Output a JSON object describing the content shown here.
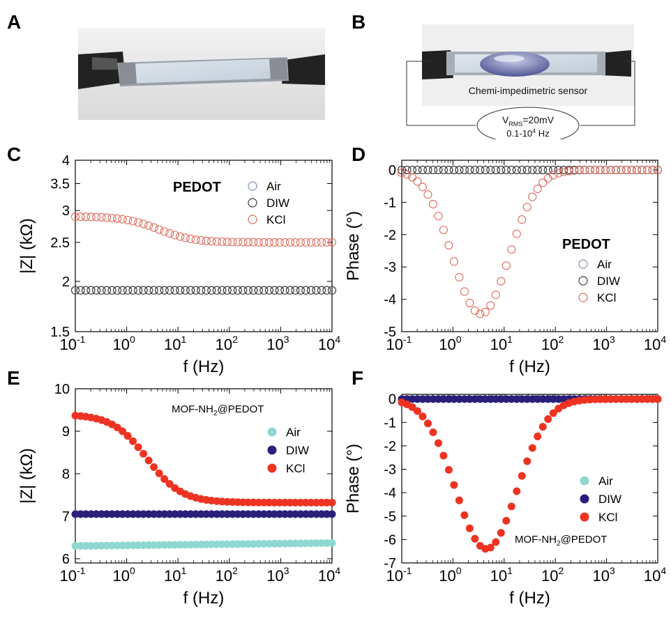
{
  "panels": {
    "A": "A",
    "B": "B",
    "C": "C",
    "D": "D",
    "E": "E",
    "F": "F"
  },
  "photo_b": {
    "sensor_label": "Chemi-impedimetric sensor",
    "vrms_main": "V",
    "vrms_sub": "RMS",
    "vrms_value": "=20mV",
    "freq_main": "0.1-10",
    "freq_sup": "4",
    "freq_unit": " Hz"
  },
  "colors": {
    "air_open": "#7f8fae",
    "diw_open": "#3a3a3a",
    "kcl_open": "#e06a5c",
    "air_fill": "#8fd8cf",
    "diw_fill": "#2a1f7a",
    "kcl_fill": "#ee3322"
  },
  "chart_data": [
    {
      "id": "C",
      "type": "scatter",
      "xscale": "log",
      "yscale": "log",
      "xlabel": "f (Hz)",
      "ylabel": "|Z| (kΩ)",
      "xlim": [
        0.1,
        10000
      ],
      "ylim": [
        1.5,
        4
      ],
      "yticks": [
        "1.5",
        "2",
        "2.5",
        "3",
        "3.5",
        "4"
      ],
      "ytick_values": [
        1.5,
        2,
        2.5,
        3,
        3.5,
        4
      ],
      "xticks_base": "10",
      "xticks_exp": [
        "-1",
        "0",
        "1",
        "2",
        "3",
        "4"
      ],
      "legend_title": "PEDOT",
      "legend_position": "top-right",
      "marker": "open",
      "series": [
        {
          "name": "Air",
          "model": "flat",
          "value": 1.9
        },
        {
          "name": "DIW",
          "model": "flat",
          "value": 1.9
        },
        {
          "name": "KCl",
          "model": "sigmoid",
          "high": 2.9,
          "low": 2.5,
          "fc": 4
        }
      ]
    },
    {
      "id": "D",
      "type": "scatter",
      "xscale": "log",
      "yscale": "linear",
      "xlabel": "f (Hz)",
      "ylabel": "Phase (°)",
      "xlim": [
        0.1,
        10000
      ],
      "ylim": [
        -5,
        0.3
      ],
      "yticks": [
        "0",
        "-1",
        "-2",
        "-3",
        "-4",
        "-5"
      ],
      "ytick_values": [
        0,
        -1,
        -2,
        -3,
        -4,
        -5
      ],
      "xticks_base": "10",
      "xticks_exp": [
        "-1",
        "0",
        "1",
        "2",
        "3",
        "4"
      ],
      "legend_title": "PEDOT",
      "legend_position": "center-right",
      "marker": "open",
      "series": [
        {
          "name": "Air",
          "model": "flat",
          "value": 0
        },
        {
          "name": "DIW",
          "model": "flat",
          "value": 0
        },
        {
          "name": "KCl",
          "model": "dip",
          "min": -4.45,
          "fc": 3.5,
          "width": 0.55
        }
      ]
    },
    {
      "id": "E",
      "type": "scatter",
      "xscale": "log",
      "yscale": "linear",
      "xlabel": "f (Hz)",
      "ylabel": "|Z| (kΩ)",
      "xlim": [
        0.1,
        10000
      ],
      "ylim": [
        5.9,
        10
      ],
      "yticks": [
        "6",
        "7",
        "8",
        "9",
        "10"
      ],
      "ytick_values": [
        6,
        7,
        8,
        9,
        10
      ],
      "xticks_base": "10",
      "xticks_exp": [
        "-1",
        "0",
        "1",
        "2",
        "3",
        "4"
      ],
      "legend_title": "MOF-NH",
      "legend_title_sub": "2",
      "legend_title_tail": "@PEDOT",
      "legend_position": "top-right",
      "marker": "filled",
      "series": [
        {
          "name": "Air",
          "model": "linear",
          "start": 6.3,
          "end": 6.37
        },
        {
          "name": "DIW",
          "model": "flat",
          "value": 7.05
        },
        {
          "name": "KCl",
          "model": "sigmoid",
          "high": 9.4,
          "low": 7.32,
          "fc": 2.5
        }
      ]
    },
    {
      "id": "F",
      "type": "scatter",
      "xscale": "log",
      "yscale": "linear",
      "xlabel": "f (Hz)",
      "ylabel": "Phase (°)",
      "xlim": [
        0.1,
        10000
      ],
      "ylim": [
        -7,
        0.2
      ],
      "yticks": [
        "0",
        "-1",
        "-2",
        "-3",
        "-4",
        "-5",
        "-6",
        "-7"
      ],
      "ytick_values": [
        0,
        -1,
        -2,
        -3,
        -4,
        -5,
        -6,
        -7
      ],
      "xticks_base": "10",
      "xticks_exp": [
        "-1",
        "0",
        "1",
        "2",
        "3",
        "4"
      ],
      "legend_title": "MOF-NH",
      "legend_title_sub": "2",
      "legend_title_tail": "@PEDOT",
      "legend_position": "bottom-right",
      "marker": "filled",
      "series": [
        {
          "name": "Air",
          "model": "flat",
          "value": 0
        },
        {
          "name": "DIW",
          "model": "flat",
          "value": 0
        },
        {
          "name": "KCl",
          "model": "dip",
          "min": -6.4,
          "fc": 4.5,
          "width": 0.6
        }
      ]
    }
  ]
}
